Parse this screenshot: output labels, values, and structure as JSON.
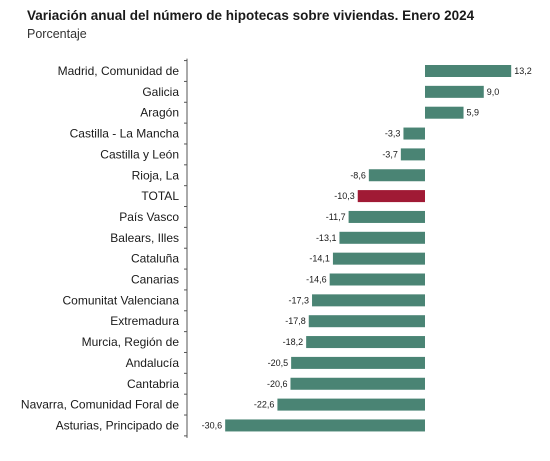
{
  "chart_data": {
    "type": "bar",
    "orientation": "horizontal",
    "title": "Variación anual del número de hipotecas sobre viviendas. Enero 2024",
    "subtitle": "Porcentaje",
    "categories": [
      "Madrid, Comunidad de",
      "Galicia",
      "Aragón",
      "Castilla - La Mancha",
      "Castilla y León",
      "Rioja, La",
      "TOTAL",
      "País Vasco",
      "Balears, Illes",
      "Cataluña",
      "Canarias",
      "Comunitat Valenciana",
      "Extremadura",
      "Murcia, Región de",
      "Andalucía",
      "Cantabria",
      "Navarra, Comunidad Foral de",
      "Asturias, Principado de"
    ],
    "values": [
      13.2,
      9.0,
      5.9,
      -3.3,
      -3.7,
      -8.6,
      -10.3,
      -11.7,
      -13.1,
      -14.1,
      -14.6,
      -17.3,
      -17.8,
      -18.2,
      -20.5,
      -20.6,
      -22.6,
      -30.6
    ],
    "value_labels": [
      "13,2",
      "9,0",
      "5,9",
      "-3,3",
      "-3,7",
      "-8,6",
      "-10,3",
      "-11,7",
      "-13,1",
      "-14,1",
      "-14,6",
      "-17,3",
      "-17,8",
      "-18,2",
      "-20,5",
      "-20,6",
      "-22,6",
      "-30,6"
    ],
    "highlight_category": "TOTAL",
    "xlim": [
      -30.6,
      13.2
    ],
    "colors": {
      "bar": "#4a8474",
      "highlight": "#a01a35",
      "axis": "#555555"
    }
  }
}
